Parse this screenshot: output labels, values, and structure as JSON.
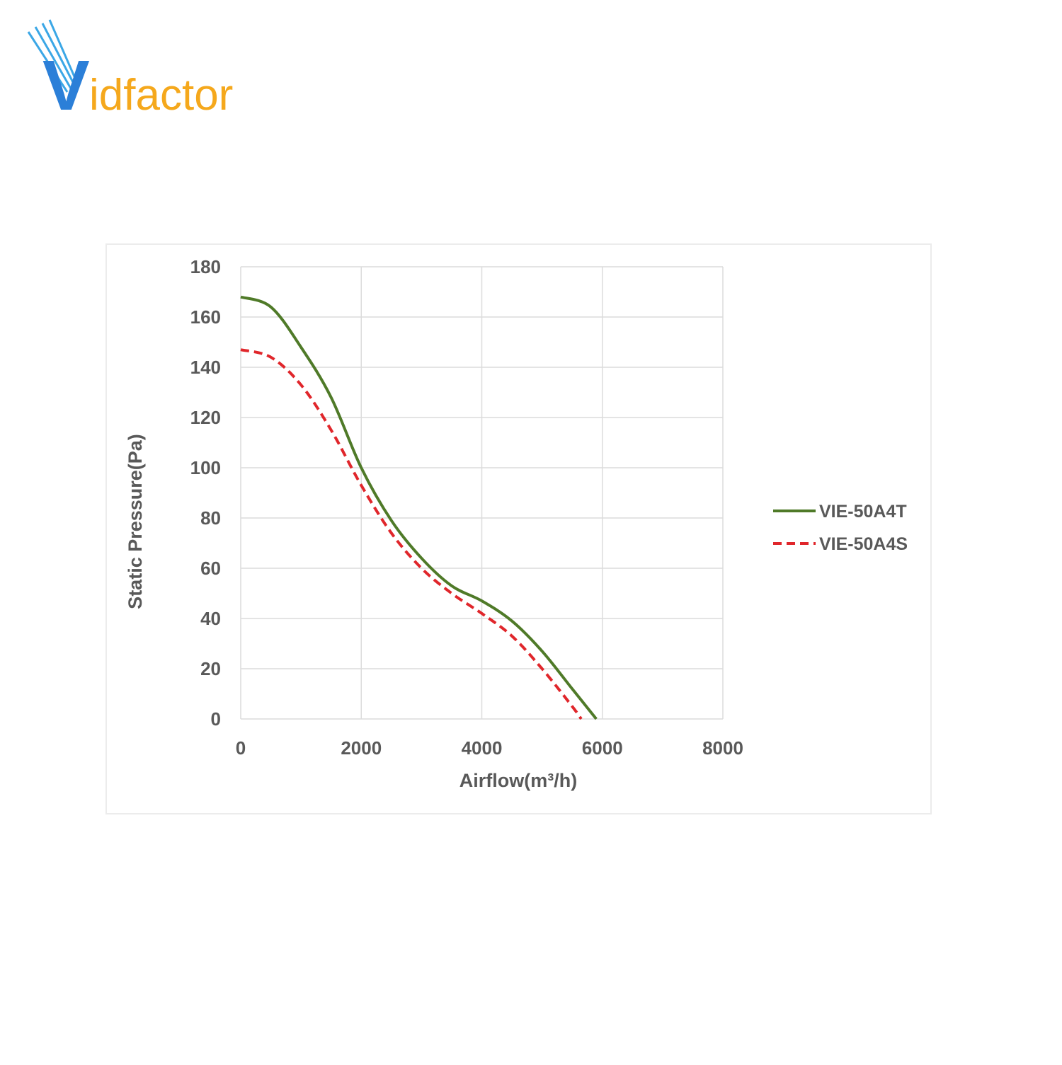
{
  "logo": {
    "mark": "V",
    "text": "idfactor"
  },
  "chart_data": {
    "type": "line",
    "x_label": "Airflow(m³/h)",
    "y_label": "Static Pressure(Pa)",
    "xlim": [
      0,
      8000
    ],
    "xticks": [
      0,
      2000,
      4000,
      6000,
      8000
    ],
    "ylim": [
      0,
      180
    ],
    "yticks": [
      0,
      20,
      40,
      60,
      80,
      100,
      120,
      140,
      160,
      180
    ],
    "grid": true,
    "legend": "right",
    "series": [
      {
        "name": "VIE-50A4T",
        "color": "#4f7a28",
        "dash": false,
        "x": [
          0,
          500,
          1000,
          1500,
          2000,
          2500,
          3000,
          3500,
          4000,
          4500,
          5000,
          5500,
          5900
        ],
        "values": [
          168,
          164,
          148,
          128,
          100,
          79,
          64,
          53,
          47,
          39,
          27,
          12,
          0
        ]
      },
      {
        "name": "VIE-50A4S",
        "color": "#e0262b",
        "dash": true,
        "x": [
          0,
          500,
          1000,
          1500,
          2000,
          2500,
          3000,
          3500,
          4000,
          4500,
          5000,
          5500,
          5650
        ],
        "values": [
          147,
          144,
          133,
          115,
          93,
          74,
          60,
          50,
          42,
          33,
          20,
          5,
          0
        ]
      }
    ]
  }
}
